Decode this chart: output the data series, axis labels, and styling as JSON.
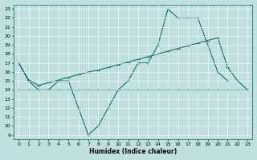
{
  "xlabel": "Humidex (Indice chaleur)",
  "bg_color": "#c0e0e0",
  "grid_color": "#b0d8d8",
  "line_color": "#006060",
  "xlim": [
    -0.5,
    23.5
  ],
  "ylim": [
    8.5,
    23.5
  ],
  "xticks": [
    0,
    1,
    2,
    3,
    4,
    5,
    6,
    7,
    8,
    9,
    10,
    11,
    12,
    13,
    14,
    15,
    16,
    17,
    18,
    19,
    20,
    21,
    22,
    23
  ],
  "yticks": [
    9,
    10,
    11,
    12,
    13,
    14,
    15,
    16,
    17,
    18,
    19,
    20,
    21,
    22,
    23
  ],
  "line1_x": [
    0,
    1,
    2,
    3,
    4,
    5,
    6,
    7,
    8,
    9,
    10,
    11,
    12,
    13,
    14,
    15,
    16,
    17,
    18,
    19,
    20,
    21
  ],
  "line1_y": [
    17,
    15,
    14,
    14,
    15,
    15,
    12,
    9,
    10,
    12,
    14,
    15,
    17,
    17,
    19,
    23,
    22,
    22,
    22,
    19,
    16,
    15
  ],
  "line2_x": [
    0,
    1,
    2,
    3,
    4,
    5,
    6,
    7,
    8,
    9,
    10,
    11,
    12,
    13,
    14,
    15,
    16,
    17,
    18,
    19,
    20,
    21,
    22,
    23
  ],
  "line2_y": [
    14,
    14,
    14,
    14,
    14,
    14,
    14,
    14,
    14,
    14,
    14,
    14,
    14,
    14,
    14,
    14,
    14,
    14,
    14,
    14,
    14,
    14,
    14,
    14
  ],
  "line3_x": [
    0,
    1,
    2,
    3,
    4,
    5,
    6,
    7,
    8,
    9,
    10,
    11,
    12,
    13,
    14,
    15,
    16,
    17,
    18,
    19,
    20,
    21,
    22,
    23
  ],
  "line3_y": [
    17,
    15.1,
    14.5,
    14.8,
    15.1,
    15.4,
    15.7,
    16.0,
    16.2,
    16.5,
    16.8,
    17.1,
    17.4,
    17.7,
    18.0,
    18.3,
    18.6,
    18.9,
    19.2,
    19.5,
    19.8,
    16.5,
    15,
    14
  ]
}
